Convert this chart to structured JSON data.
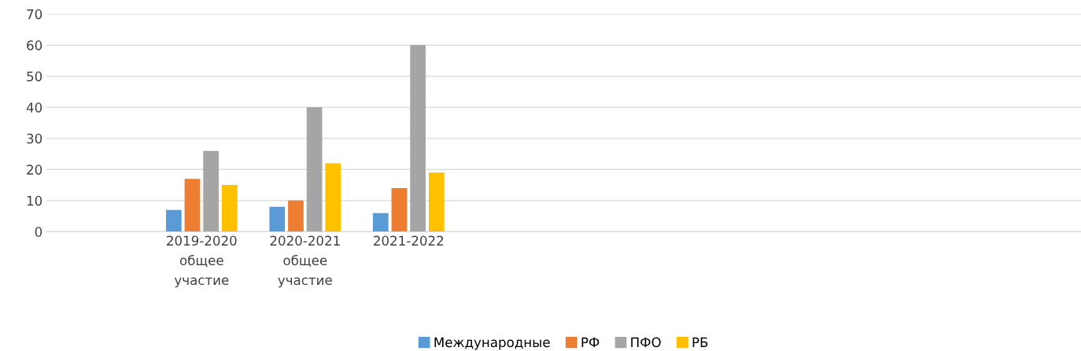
{
  "chart_data": {
    "type": "bar",
    "categories": [
      null,
      "2019-2020\nобщее\nучастие",
      "2020-2021\nобщее\nучастие",
      "2021-2022",
      null,
      null,
      null,
      null,
      null,
      null
    ],
    "series": [
      {
        "name": "Международные",
        "color": "#5b9bd5",
        "values": [
          null,
          7,
          8,
          6,
          null,
          null,
          null,
          null,
          null,
          null
        ]
      },
      {
        "name": "РФ",
        "color": "#ed7d31",
        "values": [
          null,
          17,
          10,
          14,
          null,
          null,
          null,
          null,
          null,
          null
        ]
      },
      {
        "name": "ПФО",
        "color": "#a5a5a5",
        "values": [
          null,
          26,
          40,
          60,
          null,
          null,
          null,
          null,
          null,
          null
        ]
      },
      {
        "name": "РБ",
        "color": "#ffc000",
        "values": [
          null,
          15,
          22,
          19,
          null,
          null,
          null,
          null,
          null,
          null
        ]
      }
    ],
    "ylim": [
      0,
      70
    ],
    "yticks": [
      0,
      10,
      20,
      30,
      40,
      50,
      60,
      70
    ],
    "grid": "y",
    "legend": "bottom"
  }
}
